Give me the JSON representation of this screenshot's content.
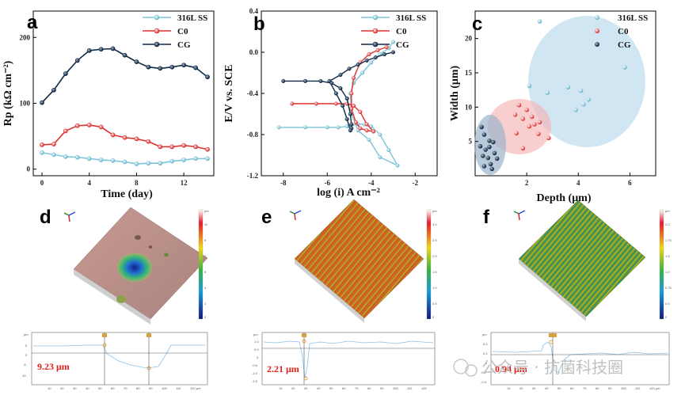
{
  "panel_letters": [
    "a",
    "b",
    "c",
    "d",
    "e",
    "f"
  ],
  "colors": {
    "ss": "#7cc4da",
    "c0": "#e03030",
    "cg": "#0f2a46"
  },
  "chart_data": [
    {
      "type": "line",
      "panel": "a",
      "xlabel": "Time (day)",
      "ylabel": "Rp (kΩ cm⁻²)",
      "xticks": [
        "0",
        "4",
        "8",
        "12"
      ],
      "yticks": [
        "0",
        "100",
        "200"
      ],
      "xlim": [
        0,
        14
      ],
      "ylim": [
        -10,
        240
      ],
      "x": [
        0,
        1,
        2,
        3,
        4,
        5,
        6,
        7,
        8,
        9,
        10,
        11,
        12,
        13,
        14
      ],
      "series": [
        {
          "name": "316L SS",
          "values": [
            25,
            22,
            19,
            18,
            16,
            14,
            13,
            11,
            8,
            9,
            9,
            12,
            14,
            16,
            16
          ]
        },
        {
          "name": "C0",
          "values": [
            37,
            38,
            58,
            66,
            67,
            64,
            52,
            48,
            46,
            42,
            34,
            34,
            36,
            34,
            30
          ]
        },
        {
          "name": "CG",
          "values": [
            101,
            120,
            145,
            165,
            180,
            182,
            183,
            173,
            163,
            155,
            153,
            155,
            158,
            154,
            140
          ]
        }
      ],
      "legend": [
        "316L SS",
        "C0",
        "CG"
      ]
    },
    {
      "type": "line",
      "panel": "b",
      "xlabel": "log (i) A cm⁻²",
      "ylabel": "E/V vs. SCE",
      "xticks": [
        "-8",
        "-6",
        "-4",
        "-2"
      ],
      "yticks": [
        "0.4",
        "0.0",
        "-0.4",
        "-0.8",
        "-1.2"
      ],
      "xlim": [
        -9,
        -1
      ],
      "ylim": [
        -1.2,
        0.4
      ],
      "series": [
        {
          "name": "316L SS",
          "x": [
            -8.2,
            -7,
            -6,
            -5.5,
            -5.1,
            -4.9,
            -4.6,
            -4.3,
            -4.0,
            -3.6,
            -3.2,
            -2.8,
            -3.6,
            -4.1,
            -4.6,
            -4.9,
            -4.95,
            -4.8,
            -4.4,
            -4.0,
            -3.6,
            -3.2,
            -3.0
          ],
          "y": [
            -0.73,
            -0.73,
            -0.73,
            -0.73,
            -0.72,
            -0.71,
            -0.7,
            -0.7,
            -0.72,
            -0.8,
            -0.95,
            -1.1,
            -1.02,
            -0.85,
            -0.76,
            -0.6,
            -0.4,
            -0.3,
            -0.2,
            -0.1,
            -0.02,
            0.04,
            0.1
          ]
        },
        {
          "name": "C0",
          "x": [
            -7.6,
            -6.5,
            -5.6,
            -5.1,
            -4.8,
            -4.5,
            -4.2,
            -3.9,
            -4.2,
            -4.5,
            -4.7,
            -4.9,
            -4.9,
            -4.8,
            -4.5,
            -4.1,
            -3.7,
            -3.3
          ],
          "y": [
            -0.5,
            -0.5,
            -0.5,
            -0.5,
            -0.52,
            -0.58,
            -0.7,
            -0.77,
            -0.76,
            -0.74,
            -0.68,
            -0.55,
            -0.4,
            -0.25,
            -0.1,
            -0.02,
            0.02,
            0.05
          ]
        },
        {
          "name": "CG",
          "x": [
            -8.0,
            -7,
            -6.3,
            -5.8,
            -5.4,
            -5.1,
            -4.95,
            -4.9,
            -4.9,
            -4.95,
            -5.1,
            -5.3,
            -5.6,
            -5.9,
            -5.4,
            -5.0,
            -4.6,
            -4.2,
            -3.8,
            -3.4,
            -3.0
          ],
          "y": [
            -0.28,
            -0.28,
            -0.28,
            -0.3,
            -0.35,
            -0.45,
            -0.6,
            -0.7,
            -0.74,
            -0.76,
            -0.65,
            -0.52,
            -0.4,
            -0.28,
            -0.22,
            -0.16,
            -0.12,
            -0.08,
            -0.05,
            -0.02,
            0.0
          ]
        }
      ],
      "legend": [
        "316L SS",
        "C0",
        "CG"
      ]
    },
    {
      "type": "scatter",
      "panel": "c",
      "xlabel": "Depth (μm)",
      "ylabel": "Width (μm)",
      "xticks": [
        "2",
        "4",
        "6"
      ],
      "yticks": [
        "5",
        "10",
        "15",
        "20"
      ],
      "xlim": [
        0,
        7
      ],
      "ylim": [
        0,
        24
      ],
      "series": [
        {
          "name": "316L SS",
          "points": [
            [
              2.5,
              22.5
            ],
            [
              5.8,
              15.8
            ],
            [
              2.1,
              13.1
            ],
            [
              3.6,
              12.9
            ],
            [
              4.1,
              12.4
            ],
            [
              2.8,
              12.1
            ],
            [
              4.4,
              11.1
            ],
            [
              4.2,
              10.4
            ],
            [
              3.9,
              9.6
            ]
          ]
        },
        {
          "name": "C0",
          "points": [
            [
              1.7,
              10.3
            ],
            [
              1.55,
              8.9
            ],
            [
              2.0,
              9.6
            ],
            [
              2.2,
              8.6
            ],
            [
              1.85,
              8.3
            ],
            [
              2.3,
              7.5
            ],
            [
              2.5,
              7.8
            ],
            [
              2.1,
              7.2
            ],
            [
              1.6,
              6.2
            ],
            [
              2.45,
              6.1
            ],
            [
              2.85,
              5.5
            ],
            [
              1.85,
              4.0
            ]
          ]
        },
        {
          "name": "CG",
          "points": [
            [
              0.25,
              7.1
            ],
            [
              0.35,
              6.0
            ],
            [
              0.55,
              5.1
            ],
            [
              0.7,
              4.9
            ],
            [
              0.2,
              4.3
            ],
            [
              0.55,
              4.2
            ],
            [
              0.4,
              3.8
            ],
            [
              0.75,
              3.3
            ],
            [
              0.3,
              2.9
            ],
            [
              0.5,
              2.6
            ],
            [
              0.85,
              2.5
            ],
            [
              0.6,
              1.7
            ],
            [
              0.35,
              1.4
            ],
            [
              0.65,
              1.0
            ]
          ]
        }
      ],
      "legend": [
        "316L SS",
        "C0",
        "CG"
      ]
    }
  ],
  "profiles": [
    {
      "panel": "d",
      "depth": "9.23 μm"
    },
    {
      "panel": "e",
      "depth": "2.21 μm"
    },
    {
      "panel": "f",
      "depth": "0.94 μm"
    }
  ],
  "watermark": "公众号 · 抗菌科技圈"
}
